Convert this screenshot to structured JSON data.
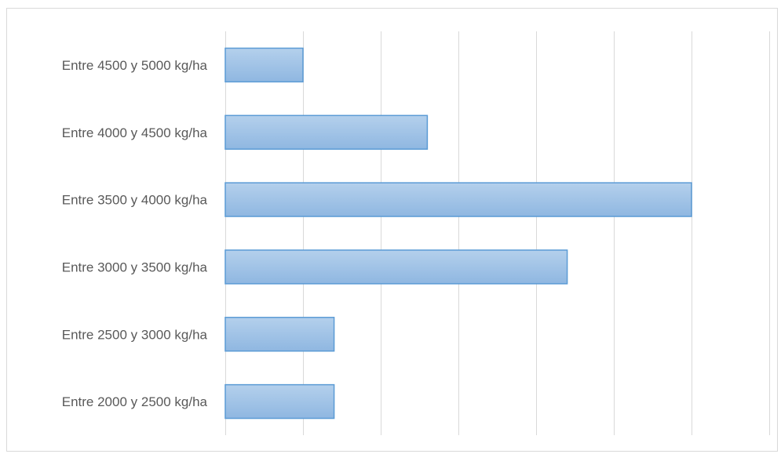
{
  "chart_data": {
    "type": "bar",
    "orientation": "horizontal",
    "categories": [
      "Entre 4500 y 5000 kg/ha",
      "Entre 4000 y 4500 kg/ha",
      "Entre 3500 y 4000 kg/ha",
      "Entre 3000 y 3500 kg/ha",
      "Entre 2500 y 3000 kg/ha",
      "Entre 2000 y 2500 kg/ha"
    ],
    "values": [
      1,
      2.6,
      6,
      4.4,
      1.4,
      1.4
    ],
    "xlim": [
      0,
      7
    ],
    "grid": true,
    "title": "",
    "xlabel": "",
    "ylabel": "",
    "bar_color": "#9dc3e6",
    "bar_border_color": "#5b9bd5"
  }
}
